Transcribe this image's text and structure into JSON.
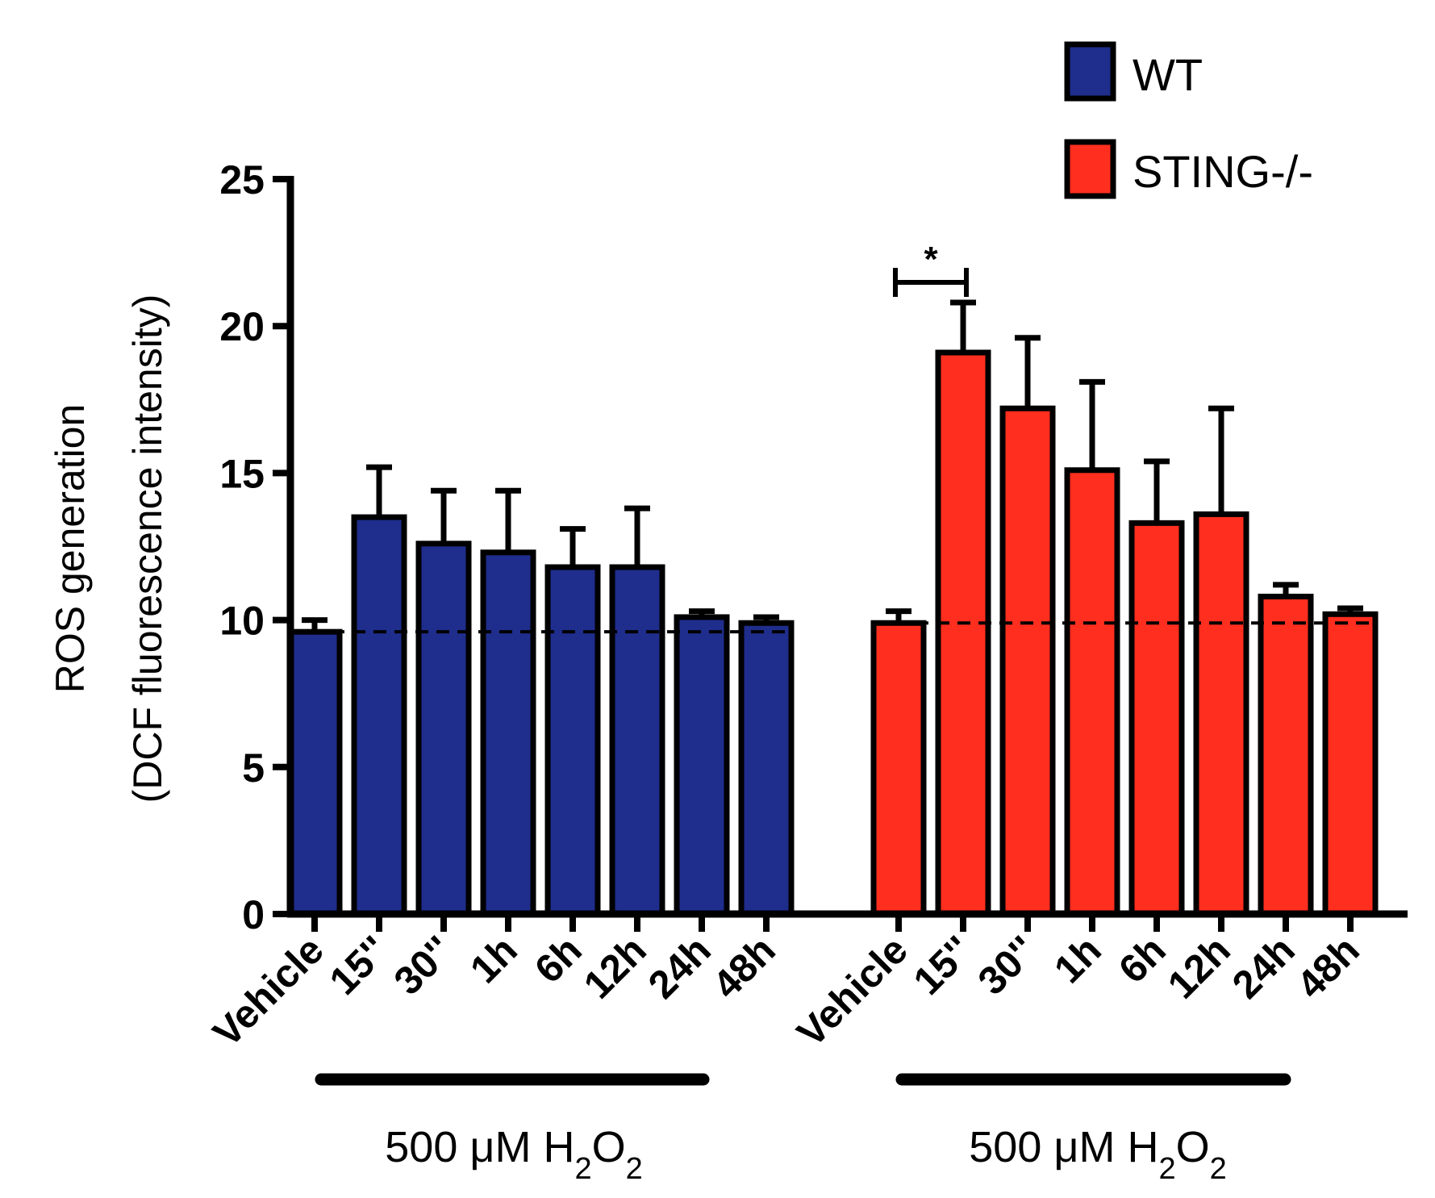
{
  "chart_data": {
    "type": "bar",
    "ylabel_line1": "ROS generation",
    "ylabel_line2": "(DCF fluorescence intensity)",
    "ylim": [
      0,
      25
    ],
    "yticks": [
      "0",
      "5",
      "10",
      "15",
      "20",
      "25"
    ],
    "categories": [
      "Vehicle",
      "15''",
      "30''",
      "1h",
      "6h",
      "12h",
      "24h",
      "48h"
    ],
    "series": [
      {
        "name": "WT",
        "color": "#1f2d8c",
        "values": [
          9.6,
          13.5,
          12.6,
          12.3,
          11.8,
          11.8,
          10.1,
          9.9
        ],
        "errors": [
          0.4,
          1.7,
          1.8,
          2.1,
          1.3,
          2.0,
          0.2,
          0.2
        ]
      },
      {
        "name": "STING-/-",
        "color": "#ff2e1f",
        "values": [
          9.9,
          19.1,
          17.2,
          15.1,
          13.3,
          13.6,
          10.8,
          10.2
        ],
        "errors": [
          0.4,
          1.7,
          2.4,
          3.0,
          2.1,
          3.6,
          0.4,
          0.2
        ]
      }
    ],
    "baselines": [
      9.6,
      9.9
    ],
    "treatment_label_prefix": "500 μM H",
    "treatment_sub1": "2",
    "treatment_mid": "O",
    "treatment_sub2": "2",
    "significance": {
      "label": "*",
      "group": 1,
      "from": 0,
      "to": 1
    },
    "legend": {
      "position": "top-right",
      "entries": [
        "WT",
        "STING-/-"
      ]
    }
  }
}
